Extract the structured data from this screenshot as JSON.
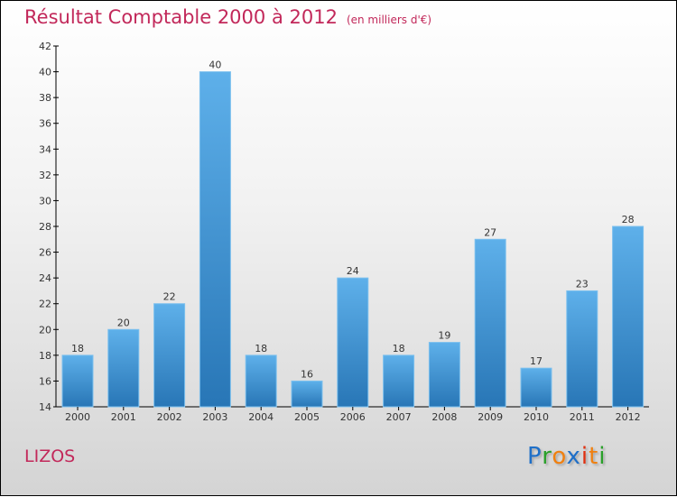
{
  "title": "Résultat Comptable 2000 à 2012",
  "subtitle": "(en milliers d'€)",
  "commune": "LIZOS",
  "logo": {
    "text": "Proxiti",
    "letters": [
      [
        "P",
        "#1e6fc8"
      ],
      [
        "r",
        "#2aa02a"
      ],
      [
        "o",
        "#f08010"
      ],
      [
        "x",
        "#1e6fc8"
      ],
      [
        "i",
        "#e03010"
      ],
      [
        "t",
        "#f08010"
      ],
      [
        "i",
        "#2aa02a"
      ]
    ]
  },
  "chart_data": {
    "type": "bar",
    "title": "Résultat Comptable 2000 à 2012",
    "xlabel": "",
    "ylabel": "",
    "categories": [
      "2000",
      "2001",
      "2002",
      "2003",
      "2004",
      "2005",
      "2006",
      "2007",
      "2008",
      "2009",
      "2010",
      "2011",
      "2012"
    ],
    "values": [
      18,
      20,
      22,
      40,
      18,
      16,
      24,
      18,
      19,
      27,
      17,
      23,
      28
    ],
    "ylim": [
      14,
      42
    ],
    "yticks": [
      14,
      16,
      18,
      20,
      22,
      24,
      26,
      28,
      30,
      32,
      34,
      36,
      38,
      40,
      42
    ],
    "bar_color": "#3a92d6"
  }
}
